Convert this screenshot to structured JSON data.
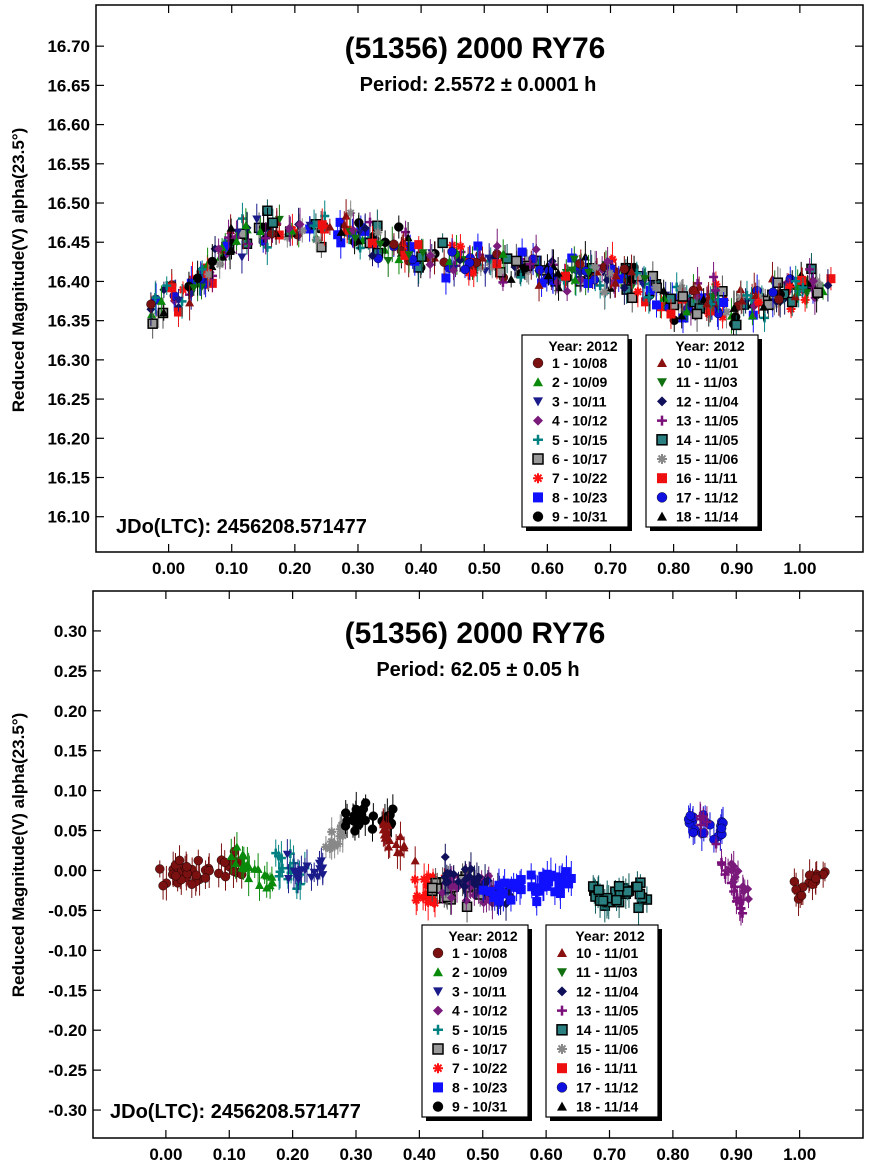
{
  "chart_data": [
    {
      "type": "scatter",
      "title": "(51356) 2000 RY76",
      "subtitle": "Period: 2.5572 ± 0.0001 h",
      "ylabel": "Reduced Magnitude(V) alpha(23.5°)",
      "xlabel": "",
      "annotation": "JDo(LTC): 2456208.571477",
      "xlim": [
        -0.115,
        1.1
      ],
      "ylim": [
        16.7525,
        16.055
      ],
      "y_inverted": true,
      "x_ticks": [
        "0.00",
        "0.10",
        "0.20",
        "0.30",
        "0.40",
        "0.50",
        "0.60",
        "0.70",
        "0.80",
        "0.90",
        "1.00"
      ],
      "y_ticks": [
        "16.10",
        "16.15",
        "16.20",
        "16.25",
        "16.30",
        "16.35",
        "16.40",
        "16.45",
        "16.50",
        "16.55",
        "16.60",
        "16.65",
        "16.70"
      ],
      "legend_left_header": "Year: 2012",
      "legend_right_header": "Year: 2012",
      "legend": [
        "1 - 10/08",
        "2 - 10/09",
        "3 - 10/11",
        "4 - 10/12",
        "5 - 10/15",
        "6 - 10/17",
        "7 - 10/22",
        "8 - 10/23",
        "9 - 10/31",
        "10 - 11/01",
        "11 - 11/03",
        "12 - 11/04",
        "13 - 11/05",
        "14 - 11/05",
        "15 - 11/06",
        "16 - 11/11",
        "17 - 11/12",
        "18 - 11/14"
      ],
      "curve": {
        "name": "",
        "x": [
          0.0,
          0.05,
          0.1,
          0.15,
          0.2,
          0.25,
          0.3,
          0.35,
          0.4,
          0.45,
          0.5,
          0.55,
          0.6,
          0.65,
          0.7,
          0.75,
          0.8,
          0.85,
          0.9,
          0.95,
          1.0,
          1.05
        ],
        "values": [
          16.37,
          16.4,
          16.45,
          16.47,
          16.46,
          16.46,
          16.46,
          16.45,
          16.43,
          16.43,
          16.43,
          16.42,
          16.41,
          16.41,
          16.41,
          16.4,
          16.37,
          16.38,
          16.37,
          16.38,
          16.39,
          16.4
        ],
        "scatter": 0.035
      }
    },
    {
      "type": "scatter",
      "title": "(51356) 2000 RY76",
      "subtitle": "Period: 62.05 ± 0.05 h",
      "ylabel": "Reduced Magnitude(V) alpha(23.5°)",
      "xlabel": "",
      "annotation": "JDo(LTC): 2456208.571477",
      "xlim": [
        -0.115,
        1.1
      ],
      "ylim": [
        0.35,
        -0.335
      ],
      "y_inverted": true,
      "x_ticks": [
        "0.00",
        "0.10",
        "0.20",
        "0.30",
        "0.40",
        "0.50",
        "0.60",
        "0.70",
        "0.80",
        "0.90",
        "1.00"
      ],
      "y_ticks": [
        "-0.30",
        "-0.25",
        "-0.20",
        "-0.15",
        "-0.10",
        "-0.05",
        "0.00",
        "0.05",
        "0.10",
        "0.15",
        "0.20",
        "0.25",
        "0.30"
      ],
      "legend_left_header": "Year: 2012",
      "legend_right_header": "Year: 2012",
      "legend": [
        "1 - 10/08",
        "2 - 10/09",
        "3 - 10/11",
        "4 - 10/12",
        "5 - 10/15",
        "6 - 10/17",
        "7 - 10/22",
        "8 - 10/23",
        "9 - 10/31",
        "10 - 11/01",
        "11 - 11/03",
        "12 - 11/04",
        "13 - 11/05",
        "14 - 11/05",
        "15 - 11/06",
        "16 - 11/11",
        "17 - 11/12",
        "18 - 11/14"
      ],
      "segments": [
        {
          "series": 0,
          "x": [
            -0.01,
            0.12
          ],
          "y": [
            -0.01,
            0.01
          ]
        },
        {
          "series": 1,
          "x": [
            0.1,
            0.17
          ],
          "y": [
            0.02,
            -0.02
          ]
        },
        {
          "series": 4,
          "x": [
            0.17,
            0.22
          ],
          "y": [
            0.01,
            -0.01
          ]
        },
        {
          "series": 2,
          "x": [
            0.19,
            0.25
          ],
          "y": [
            0.0,
            0.0
          ]
        },
        {
          "series": 14,
          "x": [
            0.24,
            0.28
          ],
          "y": [
            0.02,
            0.05
          ]
        },
        {
          "series": 8,
          "x": [
            0.28,
            0.36
          ],
          "y": [
            0.06,
            0.07
          ]
        },
        {
          "series": 9,
          "x": [
            0.34,
            0.4
          ],
          "y": [
            0.05,
            0.02
          ]
        },
        {
          "series": 6,
          "x": [
            0.39,
            0.44
          ],
          "y": [
            -0.02,
            -0.03
          ]
        },
        {
          "series": 5,
          "x": [
            0.42,
            0.5
          ],
          "y": [
            -0.02,
            -0.03
          ]
        },
        {
          "series": 3,
          "x": [
            0.43,
            0.52
          ],
          "y": [
            -0.01,
            -0.03
          ]
        },
        {
          "series": 11,
          "x": [
            0.44,
            0.56
          ],
          "y": [
            0.0,
            -0.04
          ]
        },
        {
          "series": 7,
          "x": [
            0.5,
            0.64
          ],
          "y": [
            -0.03,
            -0.01
          ]
        },
        {
          "series": 13,
          "x": [
            0.67,
            0.76
          ],
          "y": [
            -0.03,
            -0.03
          ]
        },
        {
          "series": 16,
          "x": [
            0.81,
            0.88
          ],
          "y": [
            0.07,
            0.05
          ]
        },
        {
          "series": 12,
          "x": [
            0.84,
            0.91
          ],
          "y": [
            0.07,
            -0.05
          ]
        },
        {
          "series": 3,
          "x": [
            0.88,
            0.92
          ],
          "y": [
            0.02,
            -0.03
          ]
        },
        {
          "series": 0,
          "x": [
            0.99,
            1.04
          ],
          "y": [
            -0.03,
            0.0
          ]
        }
      ],
      "scatter": 0.025
    }
  ],
  "series_styles": [
    {
      "color": "#7a1010",
      "marker": "circle"
    },
    {
      "color": "#0a8a0a",
      "marker": "triangle"
    },
    {
      "color": "#1a1a8a",
      "marker": "triangle-down"
    },
    {
      "color": "#7a1a7a",
      "marker": "diamond"
    },
    {
      "color": "#008080",
      "marker": "plus"
    },
    {
      "color": "#555555",
      "marker": "square-gray"
    },
    {
      "color": "#ff1010",
      "marker": "asterisk"
    },
    {
      "color": "#1010ff",
      "marker": "square"
    },
    {
      "color": "#000000",
      "marker": "circle"
    },
    {
      "color": "#8a1010",
      "marker": "triangle"
    },
    {
      "color": "#107010",
      "marker": "triangle-down"
    },
    {
      "color": "#10105a",
      "marker": "diamond"
    },
    {
      "color": "#7a107a",
      "marker": "plus"
    },
    {
      "color": "#0a5a5a",
      "marker": "square-teal"
    },
    {
      "color": "#888888",
      "marker": "asterisk"
    },
    {
      "color": "#ee1010",
      "marker": "square"
    },
    {
      "color": "#1010e0",
      "marker": "circle"
    },
    {
      "color": "#000000",
      "marker": "triangle"
    }
  ]
}
